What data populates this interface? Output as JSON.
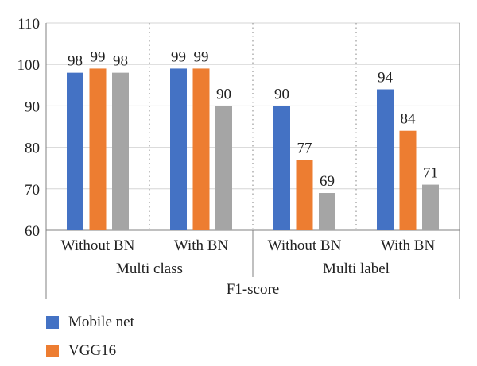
{
  "chart_data": {
    "type": "bar",
    "ylim": [
      60,
      110
    ],
    "yticks": [
      60,
      70,
      80,
      90,
      100,
      110
    ],
    "group_labels": [
      "Multi class",
      "Multi label"
    ],
    "bottom_label": "F1-score",
    "categories": [
      "Without BN",
      "With BN",
      "Without BN",
      "With BN"
    ],
    "series": [
      {
        "name": "Mobile net",
        "color": "#4472C4",
        "values": [
          98,
          99,
          90,
          94
        ]
      },
      {
        "name": "VGG16",
        "color": "#ED7D31",
        "values": [
          99,
          99,
          77,
          84
        ]
      },
      {
        "color": "#A5A5A5",
        "values": [
          98,
          90,
          69,
          71
        ]
      }
    ],
    "grid": true,
    "legend_position": "bottom-left"
  }
}
